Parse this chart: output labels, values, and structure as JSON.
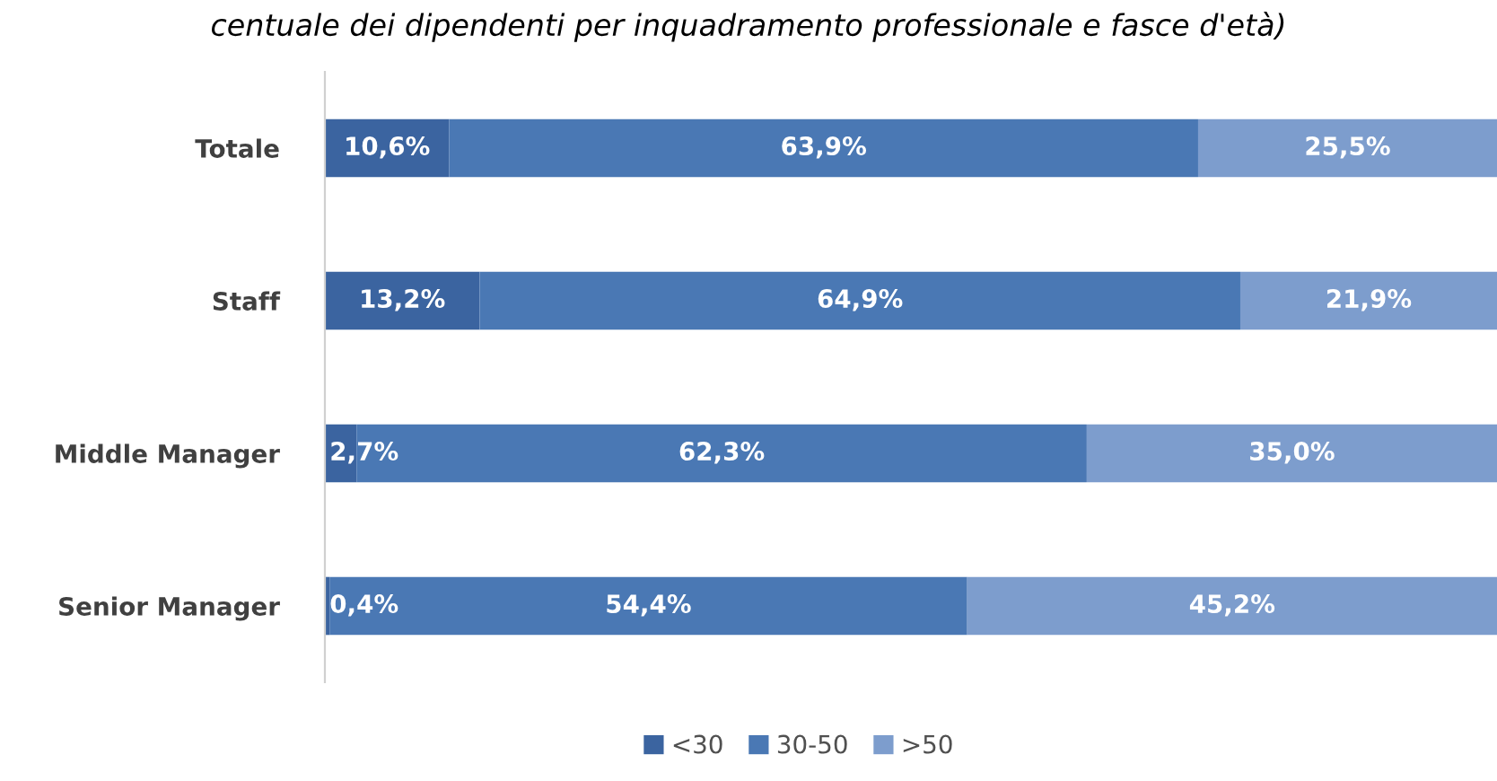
{
  "chart_data": {
    "type": "bar",
    "orientation": "horizontal",
    "stacked": true,
    "title": "centuale dei dipendenti per inquadramento professionale e fasce d'età)",
    "categories": [
      "Totale",
      "Staff",
      "Middle Manager",
      "Senior Manager"
    ],
    "series": [
      {
        "name": "<30",
        "color": "#3b64a0",
        "values": [
          10.6,
          13.2,
          2.7,
          0.4
        ],
        "value_labels": [
          "10,6%",
          "13,2%",
          "2,7%",
          "0,4%"
        ]
      },
      {
        "name": "30-50",
        "color": "#4a78b4",
        "values": [
          63.9,
          64.9,
          62.3,
          54.4
        ],
        "value_labels": [
          "63,9%",
          "64,9%",
          "62,3%",
          "54,4%"
        ]
      },
      {
        "name": ">50",
        "color": "#7d9dcd",
        "values": [
          25.5,
          21.9,
          35.0,
          45.2
        ],
        "value_labels": [
          "25,5%",
          "21,9%",
          "35,0%",
          "45,2%"
        ]
      }
    ],
    "legend": "bottom",
    "grid": false
  }
}
